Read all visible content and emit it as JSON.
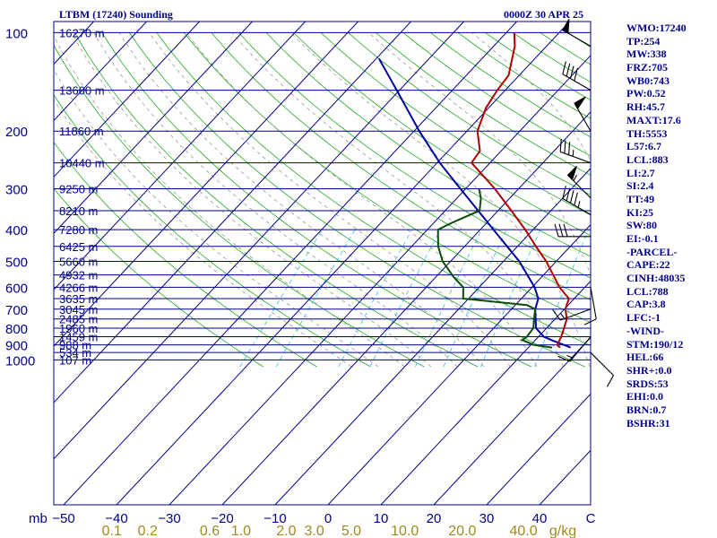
{
  "header": {
    "station": "LTBM (17240) Sounding",
    "time": "0000Z 30 APR 25"
  },
  "indices": [
    "WMO:17240",
    "TP:254",
    "MW:338",
    "FRZ:705",
    "WB0:743",
    "PW:0.52",
    "RH:45.7",
    "MAXT:17.6",
    "TH:5553",
    "L57:6.7",
    "LCL:883",
    "LI:2.7",
    "SI:2.4",
    "TT:49",
    "KI:25",
    "SW:80",
    "EI:-0.1",
    "-PARCEL-",
    "CAPE:22",
    "CINH:48035",
    "LCL:788",
    "CAP:3.8",
    "LFC:-1",
    "-WIND-",
    "STM:190/12",
    "HEL:66",
    "SHR+:0.0",
    "SRDS:53",
    "EHI:0.0",
    "BRN:0.7",
    "BSHR:31"
  ],
  "colors": {
    "isobar": "#00008b",
    "isotherm": "#00008b",
    "dry_adiabat": "#22aa22",
    "moist_adiabat": "#999999",
    "mixing_ratio": "#33bbee",
    "temperature": "#b00000",
    "environment_trace": "#0000a0",
    "dewpoint": "#0a4d0a",
    "wind": "#000000",
    "axis_text": "#00008b",
    "mixing_text": "#a08a20"
  },
  "chart_data": {
    "type": "skew-t",
    "xlabel_left": "mb",
    "xlabel_right_unit": "C",
    "mixing_unit": "g/kg",
    "temperature_ticks": [
      -50,
      -40,
      -30,
      -20,
      -10,
      0,
      10,
      20,
      30,
      40
    ],
    "pressure_levels": [
      {
        "p": 100,
        "label": "100",
        "height": "16270 m"
      },
      {
        "p": 150,
        "label": "",
        "height": "13600 m"
      },
      {
        "p": 200,
        "label": "200",
        "height": "11860 m"
      },
      {
        "p": 250,
        "label": "",
        "height": "10440 m"
      },
      {
        "p": 300,
        "label": "300",
        "height": "9250 m"
      },
      {
        "p": 350,
        "label": "",
        "height": "8210 m"
      },
      {
        "p": 400,
        "label": "400",
        "height": "7280 m"
      },
      {
        "p": 450,
        "label": "",
        "height": "6425 m"
      },
      {
        "p": 500,
        "label": "500",
        "height": "5660 m"
      },
      {
        "p": 550,
        "label": "",
        "height": "4932 m"
      },
      {
        "p": 600,
        "label": "600",
        "height": "4266 m"
      },
      {
        "p": 650,
        "label": "",
        "height": "3635 m"
      },
      {
        "p": 700,
        "label": "700",
        "height": "3045 m"
      },
      {
        "p": 750,
        "label": "",
        "height": "2485 m"
      },
      {
        "p": 800,
        "label": "800",
        "height": "1960 m"
      },
      {
        "p": 850,
        "label": "",
        "height": "1459 m"
      },
      {
        "p": 900,
        "label": "900",
        "height": "988 m"
      },
      {
        "p": 950,
        "label": "",
        "height": "534 m"
      },
      {
        "p": 1000,
        "label": "1000",
        "height": "107 m"
      }
    ],
    "mixing_ratios": [
      {
        "w": 0.1,
        "label": "0.1"
      },
      {
        "w": 0.2,
        "label": "0.2"
      },
      {
        "w": 0.6,
        "label": "0.6"
      },
      {
        "w": 1.0,
        "label": "1.0"
      },
      {
        "w": 2.0,
        "label": "2.0"
      },
      {
        "w": 3.0,
        "label": "3.0"
      },
      {
        "w": 5.0,
        "label": "5.0"
      },
      {
        "w": 10.0,
        "label": "10.0"
      },
      {
        "w": 20.0,
        "label": "20.0"
      },
      {
        "w": 40.0,
        "label": "40.0"
      }
    ],
    "temperature_profile": [
      [
        917,
        16.0
      ],
      [
        900,
        15.0
      ],
      [
        850,
        14.3
      ],
      [
        800,
        13.3
      ],
      [
        750,
        12.2
      ],
      [
        700,
        10.2
      ],
      [
        650,
        9.0
      ],
      [
        630,
        7.5
      ],
      [
        600,
        5.2
      ],
      [
        550,
        1.8
      ],
      [
        500,
        -1.9
      ],
      [
        450,
        -6.5
      ],
      [
        400,
        -11.5
      ],
      [
        350,
        -17.5
      ],
      [
        300,
        -24.5
      ],
      [
        250,
        -33.5
      ],
      [
        230,
        -34.0
      ],
      [
        200,
        -38.0
      ],
      [
        170,
        -40.5
      ],
      [
        150,
        -41.5
      ],
      [
        135,
        -42.0
      ],
      [
        110,
        -46.0
      ],
      [
        100,
        -48.5
      ]
    ],
    "environment_trace": [
      [
        917,
        18.0
      ],
      [
        870,
        13.0
      ],
      [
        850,
        11.0
      ],
      [
        800,
        8.0
      ],
      [
        700,
        4.5
      ],
      [
        650,
        3.2
      ],
      [
        600,
        0.5
      ],
      [
        500,
        -7.0
      ],
      [
        400,
        -17.5
      ],
      [
        300,
        -31.0
      ],
      [
        250,
        -39.5
      ],
      [
        200,
        -49.0
      ],
      [
        150,
        -60.5
      ],
      [
        120,
        -69.5
      ]
    ],
    "dewpoint_profile": [
      [
        917,
        14.5
      ],
      [
        900,
        10.5
      ],
      [
        870,
        7.5
      ],
      [
        850,
        7.8
      ],
      [
        800,
        7.5
      ],
      [
        750,
        6.0
      ],
      [
        700,
        4.5
      ],
      [
        680,
        2.2
      ],
      [
        650,
        -11.0
      ],
      [
        600,
        -13.0
      ],
      [
        560,
        -16.5
      ],
      [
        500,
        -21.5
      ],
      [
        450,
        -25.0
      ],
      [
        400,
        -28.0
      ],
      [
        380,
        -26.5
      ],
      [
        350,
        -23.5
      ],
      [
        320,
        -25.5
      ],
      [
        300,
        -27.5
      ]
    ],
    "winds": [
      {
        "p": 110,
        "dir": 300,
        "speed": 50
      },
      {
        "p": 150,
        "dir": 300,
        "speed": 40
      },
      {
        "p": 200,
        "dir": 330,
        "speed": 50
      },
      {
        "p": 250,
        "dir": 290,
        "speed": 35
      },
      {
        "p": 320,
        "dir": 315,
        "speed": 55
      },
      {
        "p": 360,
        "dir": 300,
        "speed": 45
      },
      {
        "p": 420,
        "dir": 270,
        "speed": 30
      },
      {
        "p": 600,
        "dir": 170,
        "speed": 10
      },
      {
        "p": 700,
        "dir": 250,
        "speed": 15
      },
      {
        "p": 850,
        "dir": 220,
        "speed": 15
      },
      {
        "p": 950,
        "dir": 135,
        "speed": 10
      }
    ]
  }
}
